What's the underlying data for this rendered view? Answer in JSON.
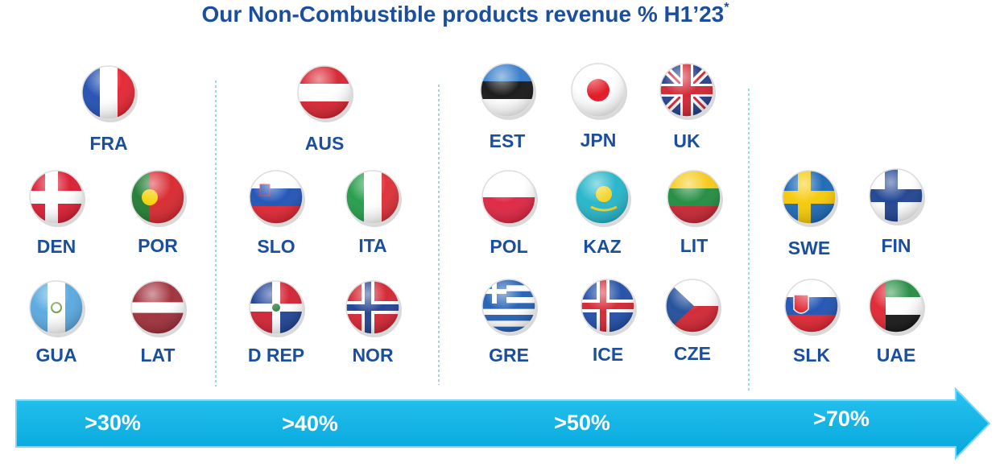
{
  "header": {
    "title": "Our Non-Combustible products revenue % H1’23",
    "title_note": "*"
  },
  "groups": [
    {
      "threshold": ">30%",
      "countries": [
        "FRA",
        "DEN",
        "POR",
        "GUA",
        "LAT"
      ]
    },
    {
      "threshold": ">40%",
      "countries": [
        "AUS",
        "SLO",
        "ITA",
        "D REP",
        "NOR"
      ]
    },
    {
      "threshold": ">50%",
      "countries": [
        "EST",
        "JPN",
        "UK",
        "POL",
        "KAZ",
        "LIT",
        "GRE",
        "ICE",
        "CZE"
      ]
    },
    {
      "threshold": ">70%",
      "countries": [
        "SWE",
        "FIN",
        "SLK",
        "UAE"
      ]
    }
  ]
}
